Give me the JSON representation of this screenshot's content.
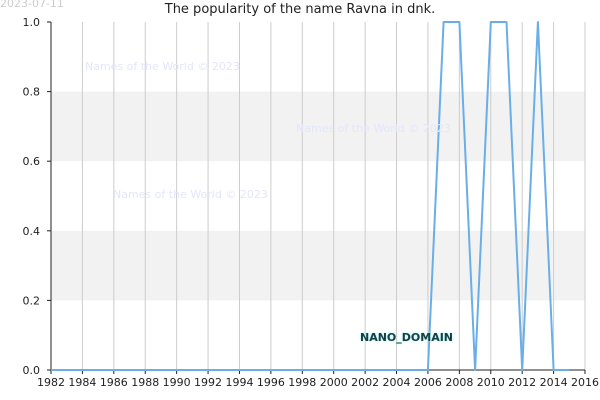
{
  "header": {
    "stamp": "2023-07-11",
    "title": "The popularity of the name Ravna in dnk."
  },
  "watermarks": [
    "Names of the World © 2023",
    "Names of the World © 2023",
    "Names of the World © 2023"
  ],
  "badge": "NANO_DOMAIN",
  "colors": {
    "line": "#6aaee8",
    "band": "#f2f2f2",
    "grid": "#cccccc",
    "axis": "#222222"
  },
  "chart_data": {
    "type": "line",
    "title": "The popularity of the name Ravna in dnk.",
    "xlabel": "",
    "ylabel": "",
    "xlim": [
      1982,
      2016
    ],
    "ylim": [
      0,
      1
    ],
    "xticks": [
      1982,
      1984,
      1986,
      1988,
      1990,
      1992,
      1994,
      1996,
      1998,
      2000,
      2002,
      2004,
      2006,
      2008,
      2010,
      2012,
      2014,
      2016
    ],
    "xtick_labels": [
      "1982",
      "1984",
      "1986",
      "1988",
      "1990",
      "1992",
      "1994",
      "1996",
      "1998",
      "2000",
      "2002",
      "2004",
      "2006",
      "2008",
      "2010",
      "2012",
      "2014",
      "2016"
    ],
    "yticks": [
      0,
      0.2,
      0.4,
      0.6,
      0.8,
      1.0
    ],
    "ytick_labels": [
      "0.0",
      "0.2",
      "0.4",
      "0.6",
      "0.8",
      "1.0"
    ],
    "grid": true,
    "series": [
      {
        "x": [
          1982,
          1983,
          1984,
          1985,
          1986,
          1987,
          1988,
          1989,
          1990,
          1991,
          1992,
          1993,
          1994,
          1995,
          1996,
          1997,
          1998,
          1999,
          2000,
          2001,
          2002,
          2003,
          2004,
          2005,
          2006,
          2007,
          2008,
          2009,
          2010,
          2011,
          2012,
          2013,
          2014,
          2015
        ],
        "values": [
          0,
          0,
          0,
          0,
          0,
          0,
          0,
          0,
          0,
          0,
          0,
          0,
          0,
          0,
          0,
          0,
          0,
          0,
          0,
          0,
          0,
          0,
          0,
          0,
          0,
          1,
          1,
          0,
          1,
          1,
          0,
          1,
          0,
          0
        ]
      }
    ]
  }
}
